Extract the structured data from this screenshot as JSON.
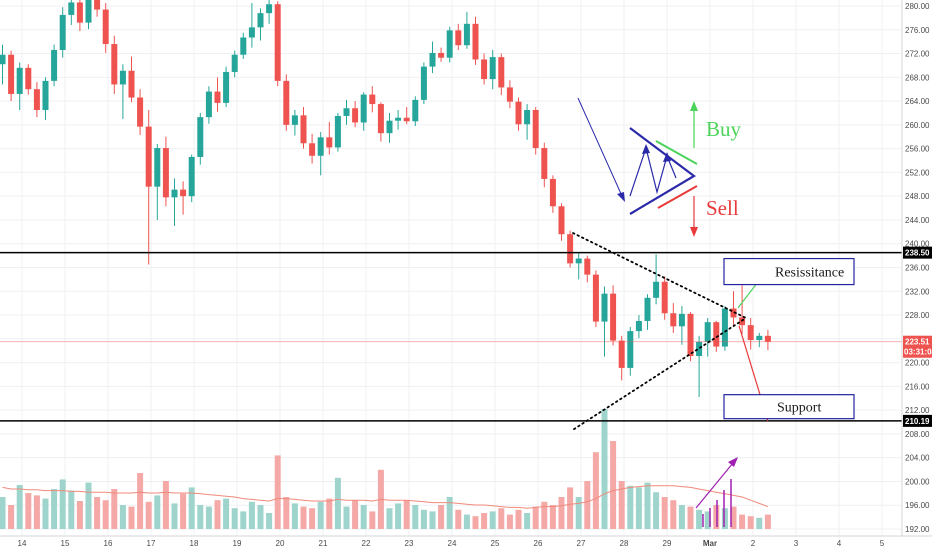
{
  "chart_data": {
    "type": "candlestick",
    "title": "",
    "xlabel": "",
    "ylabel": "",
    "ylim": [
      192,
      282
    ],
    "y_ticks": [
      "280.00",
      "276.00",
      "272.00",
      "268.00",
      "264.00",
      "260.00",
      "256.00",
      "252.00",
      "248.00",
      "244.00",
      "240.00",
      "236.00",
      "232.00",
      "228.00",
      "224.00",
      "220.00",
      "216.00",
      "212.00",
      "208.00",
      "204.00",
      "200.00",
      "196.00",
      "192.00"
    ],
    "x_ticks": [
      "14",
      "15",
      "16",
      "17",
      "18",
      "19",
      "20",
      "21",
      "22",
      "23",
      "24",
      "25",
      "26",
      "27",
      "28",
      "29",
      "Mar",
      "2",
      "3",
      "4",
      "5"
    ],
    "grid": true,
    "colors": {
      "up": "#26a69a",
      "down": "#ef5350",
      "up_volume": "#9fd4cd",
      "down_volume": "#f4a9a7",
      "volume_ma": "#f08a7a"
    },
    "levels": [
      {
        "label": "238.50",
        "value": 238.5,
        "color": "#000000"
      },
      {
        "label": "210.19",
        "value": 210.19,
        "color": "#000000"
      }
    ],
    "current_price": {
      "label": "223.51",
      "value": 223.51,
      "countdown": "03:31:04",
      "color": "#ef5350"
    },
    "candles": [
      [
        270.2,
        273.5,
        266.8,
        271.8
      ],
      [
        271.8,
        272.5,
        264.0,
        265.2
      ],
      [
        265.2,
        270.5,
        262.5,
        269.6
      ],
      [
        269.6,
        270.2,
        265.1,
        266.0
      ],
      [
        266.0,
        267.2,
        261.3,
        262.5
      ],
      [
        262.5,
        268.0,
        260.8,
        267.4
      ],
      [
        267.4,
        273.5,
        266.5,
        272.6
      ],
      [
        272.6,
        279.8,
        271.3,
        278.5
      ],
      [
        278.5,
        282.0,
        276.8,
        280.6
      ],
      [
        280.6,
        281.5,
        275.8,
        277.2
      ],
      [
        277.2,
        283.0,
        276.1,
        281.9
      ],
      [
        281.9,
        283.5,
        278.2,
        279.4
      ],
      [
        279.4,
        280.5,
        272.1,
        273.6
      ],
      [
        273.6,
        275.0,
        265.2,
        266.8
      ],
      [
        266.8,
        270.2,
        261.0,
        269.1
      ],
      [
        269.1,
        271.5,
        263.8,
        264.6
      ],
      [
        264.6,
        266.0,
        258.3,
        259.7
      ],
      [
        259.7,
        262.5,
        236.5,
        249.6
      ],
      [
        249.6,
        256.8,
        244.0,
        256.1
      ],
      [
        256.1,
        258.0,
        246.3,
        247.8
      ],
      [
        247.8,
        251.0,
        243.0,
        249.1
      ],
      [
        249.1,
        250.5,
        244.9,
        248.0
      ],
      [
        248.0,
        255.0,
        247.0,
        254.6
      ],
      [
        254.6,
        262.0,
        253.3,
        261.3
      ],
      [
        261.3,
        266.5,
        260.2,
        265.6
      ],
      [
        265.6,
        268.0,
        262.2,
        263.7
      ],
      [
        263.7,
        269.8,
        263.0,
        268.9
      ],
      [
        268.9,
        272.5,
        268.0,
        271.8
      ],
      [
        271.8,
        275.5,
        271.1,
        274.7
      ],
      [
        274.7,
        280.5,
        273.0,
        276.4
      ],
      [
        276.4,
        279.6,
        274.2,
        278.8
      ],
      [
        278.8,
        281.2,
        277.0,
        280.3
      ],
      [
        280.3,
        280.8,
        266.5,
        267.4
      ],
      [
        267.4,
        268.5,
        259.0,
        260.0
      ],
      [
        260.0,
        262.5,
        258.2,
        261.6
      ],
      [
        261.6,
        263.0,
        256.0,
        256.9
      ],
      [
        256.9,
        258.5,
        253.5,
        254.8
      ],
      [
        254.8,
        258.8,
        251.5,
        257.9
      ],
      [
        257.9,
        260.5,
        255.0,
        256.2
      ],
      [
        256.2,
        262.0,
        255.5,
        261.5
      ],
      [
        261.5,
        264.2,
        260.0,
        262.8
      ],
      [
        262.8,
        264.0,
        259.6,
        260.4
      ],
      [
        260.4,
        265.5,
        259.0,
        265.1
      ],
      [
        265.1,
        266.5,
        262.1,
        263.5
      ],
      [
        263.5,
        263.8,
        257.2,
        258.6
      ],
      [
        258.6,
        262.0,
        257.0,
        260.7
      ],
      [
        260.7,
        262.5,
        259.2,
        261.2
      ],
      [
        261.2,
        263.0,
        260.1,
        260.6
      ],
      [
        260.6,
        264.8,
        259.8,
        264.2
      ],
      [
        264.2,
        270.5,
        263.5,
        269.8
      ],
      [
        269.8,
        274.0,
        268.7,
        272.1
      ],
      [
        272.1,
        273.0,
        270.6,
        271.3
      ],
      [
        271.3,
        276.5,
        270.5,
        275.9
      ],
      [
        275.9,
        277.0,
        272.6,
        273.4
      ],
      [
        273.4,
        279.0,
        272.8,
        277.0
      ],
      [
        277.0,
        278.2,
        270.1,
        271.0
      ],
      [
        271.0,
        272.0,
        266.8,
        267.7
      ],
      [
        267.7,
        272.6,
        266.0,
        271.4
      ],
      [
        271.4,
        272.0,
        265.0,
        266.3
      ],
      [
        266.3,
        267.5,
        262.8,
        263.9
      ],
      [
        263.9,
        264.6,
        259.0,
        260.1
      ],
      [
        260.1,
        263.5,
        257.5,
        262.5
      ],
      [
        262.5,
        263.0,
        255.0,
        256.1
      ],
      [
        256.1,
        257.0,
        249.5,
        250.9
      ],
      [
        250.9,
        251.5,
        245.2,
        246.3
      ],
      [
        246.3,
        246.8,
        240.5,
        241.6
      ],
      [
        241.6,
        242.2,
        236.0,
        236.7
      ],
      [
        236.7,
        238.5,
        234.0,
        237.5
      ],
      [
        237.5,
        238.0,
        233.5,
        234.8
      ],
      [
        234.8,
        235.5,
        226.0,
        226.9
      ],
      [
        226.9,
        232.8,
        221.0,
        231.6
      ],
      [
        231.6,
        233.0,
        222.9,
        223.7
      ],
      [
        223.7,
        224.5,
        217.0,
        219.1
      ],
      [
        219.1,
        226.0,
        217.8,
        225.3
      ],
      [
        225.3,
        228.0,
        224.1,
        227.0
      ],
      [
        227.0,
        231.5,
        225.5,
        230.9
      ],
      [
        230.9,
        238.2,
        229.8,
        233.6
      ],
      [
        233.6,
        234.5,
        227.2,
        228.3
      ],
      [
        228.3,
        230.0,
        225.0,
        226.1
      ],
      [
        226.1,
        229.5,
        223.0,
        228.2
      ],
      [
        228.2,
        228.5,
        220.2,
        221.1
      ],
      [
        221.1,
        224.5,
        214.2,
        223.5
      ],
      [
        223.5,
        227.5,
        221.0,
        226.8
      ],
      [
        226.8,
        227.0,
        221.8,
        222.7
      ],
      [
        222.7,
        229.5,
        222.0,
        229.1
      ],
      [
        229.1,
        232.0,
        226.2,
        227.6
      ],
      [
        227.6,
        233.0,
        224.8,
        226.3
      ],
      [
        226.3,
        227.5,
        222.2,
        223.8
      ],
      [
        223.8,
        225.0,
        222.6,
        224.5
      ],
      [
        224.5,
        225.5,
        222.1,
        223.5
      ]
    ],
    "volumes": [
      40,
      30,
      55,
      45,
      42,
      38,
      50,
      62,
      48,
      35,
      58,
      40,
      36,
      50,
      30,
      28,
      70,
      34,
      42,
      60,
      32,
      44,
      52,
      30,
      28,
      36,
      38,
      26,
      22,
      34,
      30,
      20,
      92,
      40,
      32,
      28,
      26,
      34,
      38,
      64,
      28,
      36,
      30,
      22,
      74,
      26,
      32,
      36,
      30,
      24,
      22,
      30,
      40,
      24,
      18,
      16,
      20,
      22,
      26,
      18,
      24,
      20,
      28,
      34,
      30,
      40,
      52,
      40,
      60,
      96,
      150,
      110,
      60,
      54,
      52,
      58,
      46,
      40,
      36,
      30,
      28,
      24,
      22,
      30,
      26,
      28,
      18,
      16,
      14,
      18
    ],
    "volume_ma": [
      52,
      50,
      50,
      49,
      49,
      48,
      48,
      48,
      47,
      47,
      46,
      46,
      46,
      45,
      45,
      45,
      46,
      45,
      45,
      46,
      45,
      45,
      45,
      44,
      43,
      42,
      41,
      40,
      38,
      37,
      36,
      35,
      38,
      38,
      37,
      36,
      35,
      35,
      35,
      37,
      36,
      36,
      36,
      35,
      37,
      36,
      36,
      36,
      35,
      34,
      33,
      33,
      33,
      32,
      31,
      30,
      30,
      29,
      28,
      27,
      27,
      26,
      27,
      28,
      28,
      29,
      31,
      32,
      34,
      38,
      44,
      48,
      50,
      52,
      53,
      54,
      54,
      54,
      54,
      53,
      52,
      50,
      48,
      46,
      44,
      42,
      40,
      36,
      32,
      28
    ],
    "annotations": {
      "buy": "Buy",
      "sell": "Sell",
      "resistance": "Resissitance",
      "support": "Support"
    }
  }
}
